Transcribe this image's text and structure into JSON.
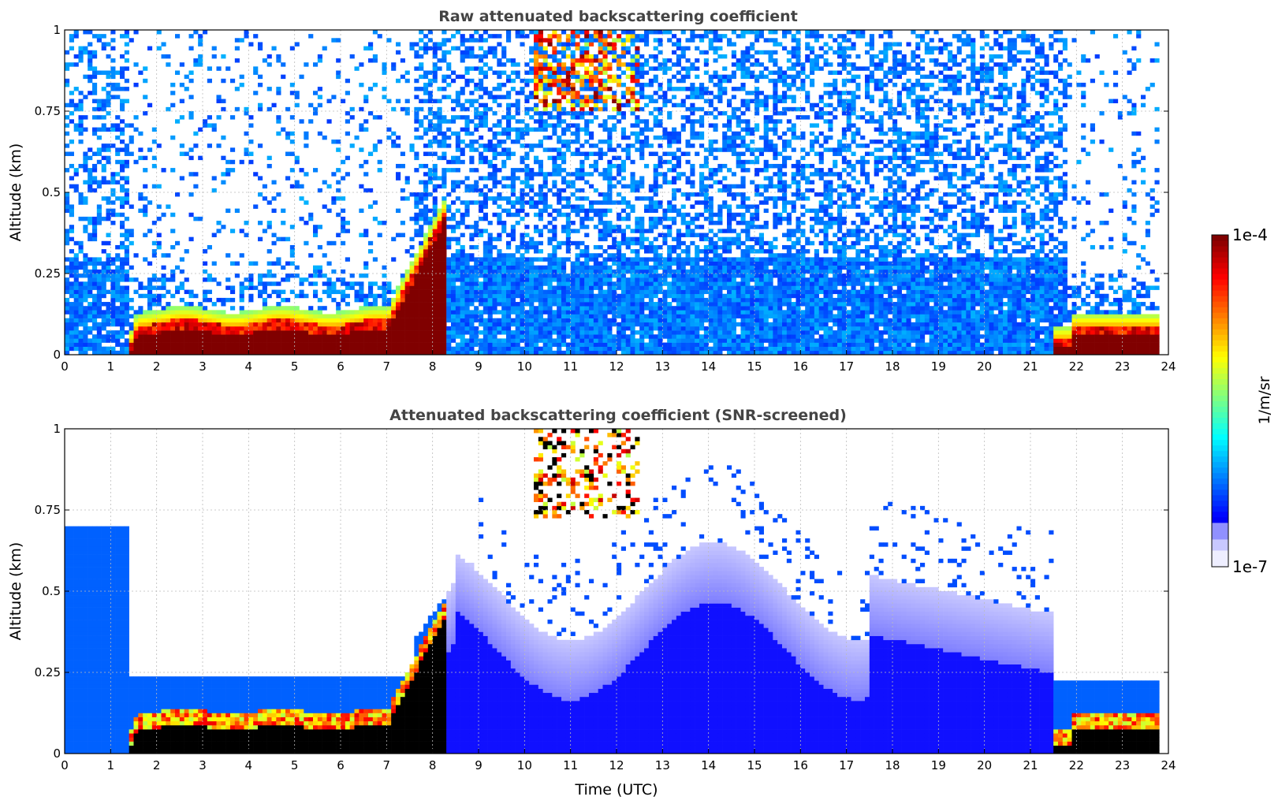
{
  "chart_data": [
    {
      "type": "heatmap",
      "title": "Raw attenuated backscattering coefficient",
      "xlabel": "",
      "ylabel": "Altitude (km)",
      "xlim": [
        0,
        24
      ],
      "ylim": [
        0,
        1
      ],
      "xticks": [
        "0",
        "1",
        "2",
        "3",
        "4",
        "5",
        "6",
        "7",
        "8",
        "9",
        "10",
        "11",
        "12",
        "13",
        "14",
        "15",
        "16",
        "17",
        "18",
        "19",
        "20",
        "21",
        "22",
        "23",
        "24"
      ],
      "yticks": [
        "0",
        "0.25",
        "0.5",
        "0.75",
        "1"
      ],
      "grid": true,
      "features": [
        {
          "name": "surface layer",
          "t_start": 1.4,
          "t_end": 7.6,
          "alt_top": 0.1,
          "level": "1e-4"
        },
        {
          "name": "surface layer",
          "t_start": 21.8,
          "t_end": 23.8,
          "alt_top": 0.1,
          "level": "1e-4"
        },
        {
          "name": "rising layer",
          "t_start": 7.2,
          "t_end": 8.3,
          "alt_top": 0.45,
          "level": "1e-4"
        },
        {
          "name": "cloud",
          "t_start": 10.2,
          "t_end": 12.5,
          "alt_bottom": 0.75,
          "alt_top": 1.0,
          "level": "1e-4"
        }
      ]
    },
    {
      "type": "heatmap",
      "title": "Attenuated backscattering coefficient (SNR-screened)",
      "xlabel": "Time (UTC)",
      "ylabel": "Altitude (km)",
      "xlim": [
        0,
        24
      ],
      "ylim": [
        0,
        1
      ],
      "xticks": [
        "0",
        "1",
        "2",
        "3",
        "4",
        "5",
        "6",
        "7",
        "8",
        "9",
        "10",
        "11",
        "12",
        "13",
        "14",
        "15",
        "16",
        "17",
        "18",
        "19",
        "20",
        "21",
        "22",
        "23",
        "24"
      ],
      "yticks": [
        "0",
        "0.25",
        "0.5",
        "0.75",
        "1"
      ],
      "grid": true,
      "features": [
        {
          "name": "surface layer",
          "t_start": 1.4,
          "t_end": 7.6,
          "alt_top": 0.08,
          "level": "saturated"
        },
        {
          "name": "surface layer",
          "t_start": 21.8,
          "t_end": 23.8,
          "alt_top": 0.08,
          "level": "saturated"
        },
        {
          "name": "boundary layer",
          "t_start": 8.0,
          "t_end": 21.5,
          "alt_top": 0.6,
          "level": "1e-6"
        },
        {
          "name": "cloud",
          "t_start": 10.2,
          "t_end": 12.5,
          "alt_bottom": 0.75,
          "alt_top": 1.0,
          "level": "1e-4"
        }
      ]
    }
  ],
  "colorbar": {
    "label": "1/m/sr",
    "max_label": "1e-4",
    "min_label": "1e-7",
    "scale": "log",
    "colormap": "jet",
    "colors": [
      "#eeeeff",
      "#c8c8ff",
      "#9a9aff",
      "#5050ff",
      "#0000ff",
      "#0050ff",
      "#00a0ff",
      "#00e0e0",
      "#40ff80",
      "#c0ff40",
      "#ffff00",
      "#ffb000",
      "#ff5000",
      "#e00000",
      "#800000"
    ]
  }
}
